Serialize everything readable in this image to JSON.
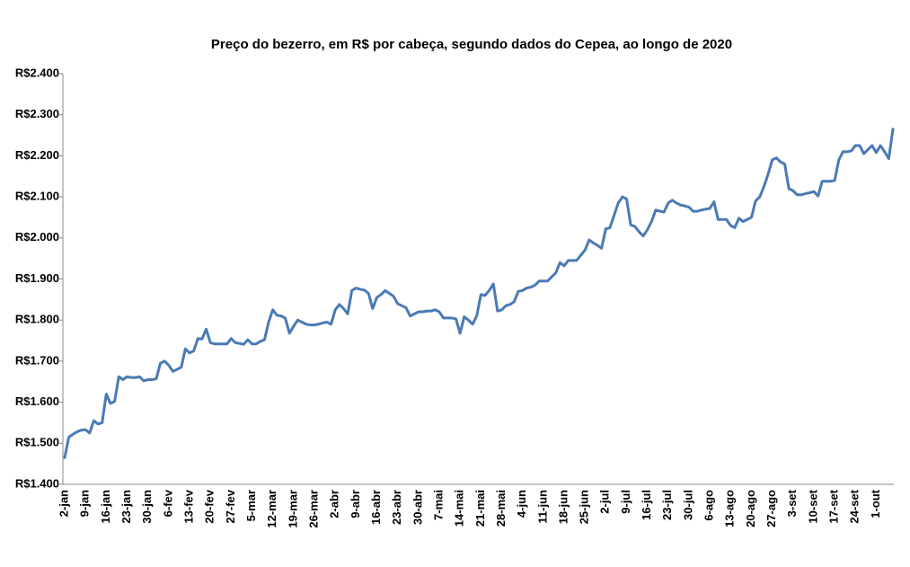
{
  "chart_data": {
    "type": "line",
    "title": "Preço do bezerro, em R$ por cabeça, segundo dados do Cepea, ao longo de 2020",
    "categories": [
      "2-jan",
      null,
      null,
      null,
      null,
      "9-jan",
      null,
      null,
      null,
      null,
      "16-jan",
      null,
      null,
      null,
      null,
      "23-jan",
      null,
      null,
      null,
      null,
      "30-jan",
      null,
      null,
      null,
      null,
      "6-fev",
      null,
      null,
      null,
      null,
      "13-fev",
      null,
      null,
      null,
      null,
      "20-fev",
      null,
      null,
      null,
      null,
      "27-fev",
      null,
      null,
      null,
      null,
      "5-mar",
      null,
      null,
      null,
      null,
      "12-mar",
      null,
      null,
      null,
      null,
      "19-mar",
      null,
      null,
      null,
      null,
      "26-mar",
      null,
      null,
      null,
      null,
      "2-abr",
      null,
      null,
      null,
      null,
      "9-abr",
      null,
      null,
      null,
      null,
      "16-abr",
      null,
      null,
      null,
      null,
      "23-abr",
      null,
      null,
      null,
      null,
      "30-abr",
      null,
      null,
      null,
      null,
      "7-mai",
      null,
      null,
      null,
      null,
      "14-mai",
      null,
      null,
      null,
      null,
      "21-mai",
      null,
      null,
      null,
      null,
      "28-mai",
      null,
      null,
      null,
      null,
      "4-jun",
      null,
      null,
      null,
      null,
      "11-jun",
      null,
      null,
      null,
      null,
      "18-jun",
      null,
      null,
      null,
      null,
      "25-jun",
      null,
      null,
      null,
      null,
      "2-jul",
      null,
      null,
      null,
      null,
      "9-jul",
      null,
      null,
      null,
      null,
      "16-jul",
      null,
      null,
      null,
      null,
      "23-jul",
      null,
      null,
      null,
      null,
      "30-jul",
      null,
      null,
      null,
      null,
      "6-ago",
      null,
      null,
      null,
      null,
      "13-ago",
      null,
      null,
      null,
      null,
      "20-ago",
      null,
      null,
      null,
      null,
      "27-ago",
      null,
      null,
      null,
      null,
      "3-set",
      null,
      null,
      null,
      null,
      "10-set",
      null,
      null,
      null,
      null,
      "17-set",
      null,
      null,
      null,
      null,
      "24-set",
      null,
      null,
      null,
      null,
      "1-out",
      null,
      null,
      null,
      null
    ],
    "values": [
      1465,
      1515,
      1522,
      1528,
      1532,
      1533,
      1525,
      1555,
      1547,
      1550,
      1620,
      1597,
      1602,
      1662,
      1655,
      1662,
      1660,
      1660,
      1662,
      1652,
      1655,
      1655,
      1657,
      1695,
      1700,
      1690,
      1675,
      1680,
      1685,
      1730,
      1720,
      1725,
      1755,
      1754,
      1778,
      1745,
      1742,
      1742,
      1742,
      1742,
      1755,
      1745,
      1743,
      1741,
      1752,
      1742,
      1742,
      1748,
      1752,
      1795,
      1825,
      1812,
      1810,
      1805,
      1768,
      1785,
      1800,
      1795,
      1790,
      1788,
      1788,
      1790,
      1793,
      1795,
      1790,
      1825,
      1838,
      1828,
      1815,
      1872,
      1878,
      1875,
      1873,
      1865,
      1828,
      1855,
      1862,
      1872,
      1865,
      1858,
      1840,
      1835,
      1830,
      1810,
      1815,
      1820,
      1820,
      1822,
      1822,
      1825,
      1820,
      1805,
      1805,
      1805,
      1803,
      1768,
      1808,
      1800,
      1790,
      1810,
      1862,
      1860,
      1872,
      1888,
      1822,
      1825,
      1835,
      1838,
      1845,
      1870,
      1872,
      1878,
      1880,
      1885,
      1895,
      1895,
      1895,
      1905,
      1915,
      1940,
      1932,
      1945,
      1945,
      1945,
      1958,
      1970,
      1995,
      1988,
      1982,
      1975,
      2022,
      2025,
      2055,
      2085,
      2100,
      2095,
      2032,
      2028,
      2015,
      2005,
      2020,
      2040,
      2068,
      2065,
      2063,
      2085,
      2092,
      2085,
      2080,
      2078,
      2075,
      2065,
      2065,
      2068,
      2070,
      2072,
      2088,
      2045,
      2045,
      2045,
      2030,
      2025,
      2048,
      2040,
      2045,
      2050,
      2090,
      2100,
      2125,
      2155,
      2190,
      2195,
      2185,
      2180,
      2120,
      2115,
      2105,
      2105,
      2108,
      2110,
      2113,
      2102,
      2138,
      2138,
      2138,
      2140,
      2190,
      2210,
      2210,
      2212,
      2225,
      2225,
      2205,
      2215,
      2225,
      2208,
      2225,
      2210,
      2193,
      2265
    ],
    "color": "#4a7ab5",
    "ylim": [
      1400,
      2400
    ],
    "yticks": [
      {
        "value": 1400,
        "label": "R$1.400"
      },
      {
        "value": 1500,
        "label": "R$1.500"
      },
      {
        "value": 1600,
        "label": "R$1.600"
      },
      {
        "value": 1700,
        "label": "R$1.700"
      },
      {
        "value": 1800,
        "label": "R$1.800"
      },
      {
        "value": 1900,
        "label": "R$1.900"
      },
      {
        "value": 2000,
        "label": "R$2.000"
      },
      {
        "value": 2100,
        "label": "R$2.100"
      },
      {
        "value": 2200,
        "label": "R$2.200"
      },
      {
        "value": 2300,
        "label": "R$2.300"
      },
      {
        "value": 2400,
        "label": "R$2.400"
      }
    ],
    "grid": false
  }
}
